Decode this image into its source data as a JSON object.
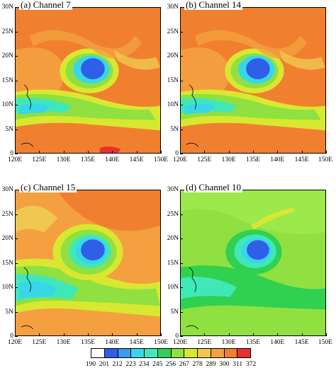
{
  "panels": [
    {
      "id": "a",
      "title": "(a) Channel 7",
      "palette": "warm"
    },
    {
      "id": "b",
      "title": "(b) Channel 14",
      "palette": "warm"
    },
    {
      "id": "c",
      "title": "(c) Channel 15",
      "palette": "mixed"
    },
    {
      "id": "d",
      "title": "(d) Channel 10",
      "palette": "cool"
    }
  ],
  "axes": {
    "y_ticks": [
      "0",
      "5N",
      "10N",
      "15N",
      "20N",
      "25N",
      "30N"
    ],
    "x_ticks": [
      "120E",
      "125E",
      "130E",
      "135E",
      "140E",
      "145E",
      "150E"
    ]
  },
  "colorbar": {
    "labels": [
      "190",
      "201",
      "212",
      "223",
      "234",
      "245",
      "256",
      "267",
      "278",
      "289",
      "300",
      "311",
      "372"
    ],
    "colors": [
      "#ffffff",
      "#2f5fe8",
      "#3a9cf0",
      "#38d7e8",
      "#40e8b8",
      "#30d050",
      "#8fe040",
      "#d8e830",
      "#f0c850",
      "#f4a040",
      "#f08030",
      "#e83030"
    ]
  }
}
